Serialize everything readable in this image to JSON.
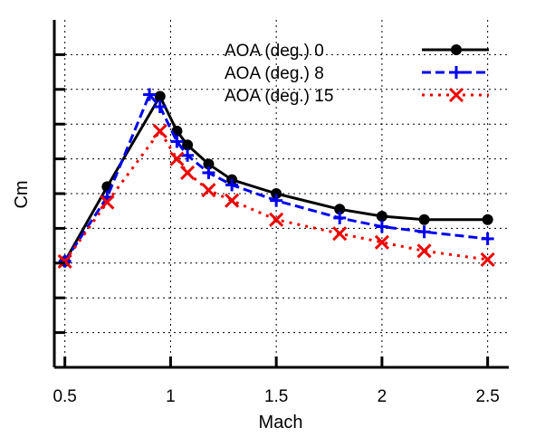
{
  "chart_data": {
    "type": "line",
    "xlabel": "Mach",
    "ylabel": "Cm",
    "xlim": [
      0.45,
      2.6
    ],
    "ylim": [
      0,
      10
    ],
    "x_ticks": [
      0.5,
      1,
      1.5,
      2,
      2.5
    ],
    "x_tick_labels": [
      "0.5",
      "1",
      "1.5",
      "2",
      "2.5"
    ],
    "y_ticks": [
      1,
      2,
      3,
      4,
      5,
      6,
      7,
      8,
      9
    ],
    "grid": true,
    "legend_position": "top-right",
    "series": [
      {
        "name": "AOA (deg.) 0",
        "color": "#000000",
        "line_style": "solid",
        "marker": "circle",
        "x": [
          0.5,
          0.7,
          0.95,
          1.03,
          1.08,
          1.18,
          1.29,
          1.5,
          1.8,
          2.0,
          2.2,
          2.5
        ],
        "y": [
          3.05,
          5.2,
          7.8,
          6.8,
          6.4,
          5.85,
          5.4,
          5.0,
          4.55,
          4.35,
          4.25,
          4.25
        ]
      },
      {
        "name": "AOA (deg.) 8",
        "color": "#0000ee",
        "line_style": "dashed",
        "marker": "plus",
        "x": [
          0.5,
          0.7,
          0.9,
          0.95,
          1.03,
          1.08,
          1.18,
          1.29,
          1.5,
          1.8,
          2.0,
          2.2,
          2.5
        ],
        "y": [
          3.05,
          4.9,
          7.85,
          7.5,
          6.5,
          6.1,
          5.6,
          5.25,
          4.8,
          4.3,
          4.05,
          3.9,
          3.7
        ]
      },
      {
        "name": "AOA (deg.) 15",
        "color": "#ee0000",
        "line_style": "dotted",
        "marker": "x",
        "x": [
          0.5,
          0.7,
          0.95,
          1.03,
          1.08,
          1.18,
          1.29,
          1.5,
          1.8,
          2.0,
          2.2,
          2.5
        ],
        "y": [
          3.05,
          4.75,
          6.8,
          6.0,
          5.6,
          5.1,
          4.8,
          4.25,
          3.85,
          3.6,
          3.35,
          3.1
        ]
      }
    ]
  }
}
